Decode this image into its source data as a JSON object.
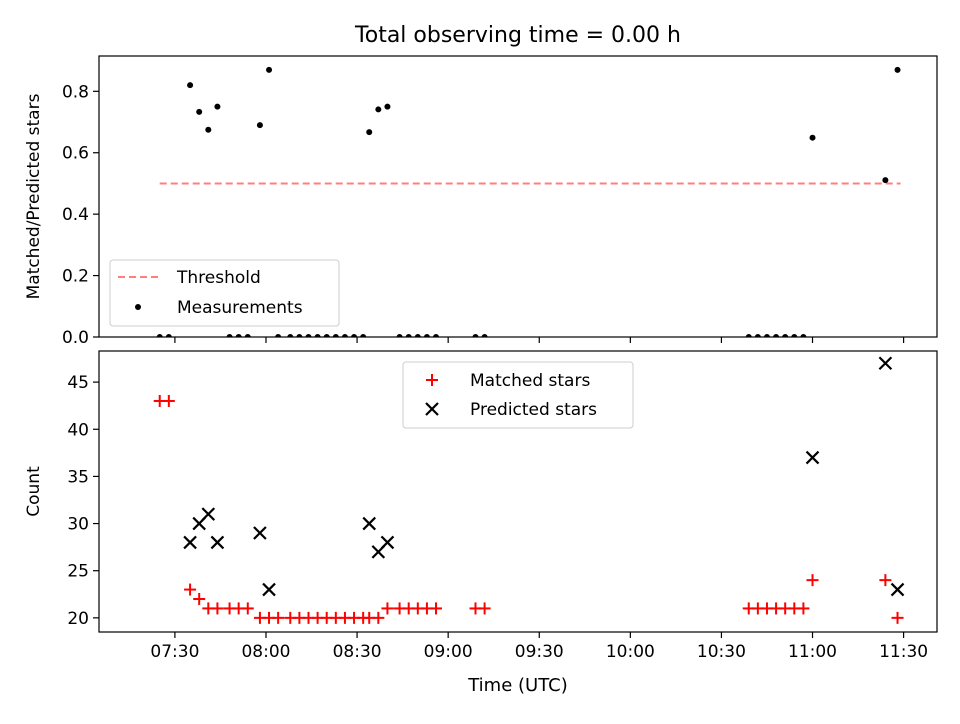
{
  "title": "Total observing time = 0.00 h",
  "colors": {
    "threshold": "#ff7f7f",
    "measurements": "#000000",
    "matched": "#ff0000",
    "predicted": "#000000"
  },
  "xlabel": "Time (UTC)",
  "xticks": [
    {
      "label": "07:30",
      "t": 450
    },
    {
      "label": "08:00",
      "t": 480
    },
    {
      "label": "08:30",
      "t": 510
    },
    {
      "label": "09:00",
      "t": 540
    },
    {
      "label": "09:30",
      "t": 570
    },
    {
      "label": "10:00",
      "t": 600
    },
    {
      "label": "10:30",
      "t": 630
    },
    {
      "label": "11:00",
      "t": 660
    },
    {
      "label": "11:30",
      "t": 690
    }
  ],
  "chart_data": [
    {
      "type": "scatter",
      "ylabel": "Matched/Predicted stars",
      "ylim": [
        0,
        0.915
      ],
      "yticks": [
        "0.0",
        "0.2",
        "0.4",
        "0.6",
        "0.8"
      ],
      "legend": {
        "placement": "lower-left",
        "entries": [
          "Threshold",
          "Measurements"
        ]
      },
      "threshold": {
        "name": "Threshold",
        "value": 0.5,
        "x_start": "07:25",
        "x_end": "11:29"
      },
      "series": [
        {
          "name": "Measurements",
          "points": [
            [
              "07:25",
              0.0
            ],
            [
              "07:28",
              0.0
            ],
            [
              "07:35",
              0.82
            ],
            [
              "07:38",
              0.733
            ],
            [
              "07:41",
              0.675
            ],
            [
              "07:44",
              0.75
            ],
            [
              "07:48",
              0.0
            ],
            [
              "07:51",
              0.0
            ],
            [
              "07:54",
              0.0
            ],
            [
              "07:58",
              0.69
            ],
            [
              "08:01",
              0.87
            ],
            [
              "08:04",
              0.0
            ],
            [
              "08:08",
              0.0
            ],
            [
              "08:11",
              0.0
            ],
            [
              "08:14",
              0.0
            ],
            [
              "08:17",
              0.0
            ],
            [
              "08:20",
              0.0
            ],
            [
              "08:23",
              0.0
            ],
            [
              "08:26",
              0.0
            ],
            [
              "08:29",
              0.0
            ],
            [
              "08:32",
              0.0
            ],
            [
              "08:34",
              0.667
            ],
            [
              "08:37",
              0.741
            ],
            [
              "08:40",
              0.75
            ],
            [
              "08:44",
              0.0
            ],
            [
              "08:47",
              0.0
            ],
            [
              "08:50",
              0.0
            ],
            [
              "08:53",
              0.0
            ],
            [
              "08:56",
              0.0
            ],
            [
              "09:09",
              0.0
            ],
            [
              "09:12",
              0.0
            ],
            [
              "10:39",
              0.0
            ],
            [
              "10:42",
              0.0
            ],
            [
              "10:45",
              0.0
            ],
            [
              "10:48",
              0.0
            ],
            [
              "10:51",
              0.0
            ],
            [
              "10:54",
              0.0
            ],
            [
              "10:57",
              0.0
            ],
            [
              "11:00",
              0.649
            ],
            [
              "11:24",
              0.511
            ],
            [
              "11:28",
              0.87
            ]
          ]
        }
      ]
    },
    {
      "type": "scatter",
      "ylabel": "Count",
      "ylim": [
        18.5,
        48.3
      ],
      "yticks": [
        "20",
        "25",
        "30",
        "35",
        "40",
        "45"
      ],
      "legend": {
        "placement": "top-center",
        "entries": [
          "Matched stars",
          "Predicted stars"
        ]
      },
      "series": [
        {
          "name": "Matched stars",
          "points": [
            [
              "07:25",
              43
            ],
            [
              "07:28",
              43
            ],
            [
              "07:35",
              23
            ],
            [
              "07:38",
              22
            ],
            [
              "07:41",
              21
            ],
            [
              "07:44",
              21
            ],
            [
              "07:48",
              21
            ],
            [
              "07:51",
              21
            ],
            [
              "07:54",
              21
            ],
            [
              "07:58",
              20
            ],
            [
              "08:01",
              20
            ],
            [
              "08:04",
              20
            ],
            [
              "08:08",
              20
            ],
            [
              "08:11",
              20
            ],
            [
              "08:14",
              20
            ],
            [
              "08:17",
              20
            ],
            [
              "08:20",
              20
            ],
            [
              "08:23",
              20
            ],
            [
              "08:26",
              20
            ],
            [
              "08:29",
              20
            ],
            [
              "08:32",
              20
            ],
            [
              "08:34",
              20
            ],
            [
              "08:37",
              20
            ],
            [
              "08:40",
              21
            ],
            [
              "08:44",
              21
            ],
            [
              "08:47",
              21
            ],
            [
              "08:50",
              21
            ],
            [
              "08:53",
              21
            ],
            [
              "08:56",
              21
            ],
            [
              "09:09",
              21
            ],
            [
              "09:12",
              21
            ],
            [
              "10:39",
              21
            ],
            [
              "10:42",
              21
            ],
            [
              "10:45",
              21
            ],
            [
              "10:48",
              21
            ],
            [
              "10:51",
              21
            ],
            [
              "10:54",
              21
            ],
            [
              "10:57",
              21
            ],
            [
              "11:00",
              24
            ],
            [
              "11:24",
              24
            ],
            [
              "11:28",
              20
            ]
          ]
        },
        {
          "name": "Predicted stars",
          "points": [
            [
              "07:35",
              28
            ],
            [
              "07:38",
              30
            ],
            [
              "07:41",
              31
            ],
            [
              "07:44",
              28
            ],
            [
              "07:58",
              29
            ],
            [
              "08:01",
              23
            ],
            [
              "08:34",
              30
            ],
            [
              "08:37",
              27
            ],
            [
              "08:40",
              28
            ],
            [
              "11:00",
              37
            ],
            [
              "11:24",
              47
            ],
            [
              "11:28",
              23
            ]
          ]
        }
      ]
    }
  ]
}
